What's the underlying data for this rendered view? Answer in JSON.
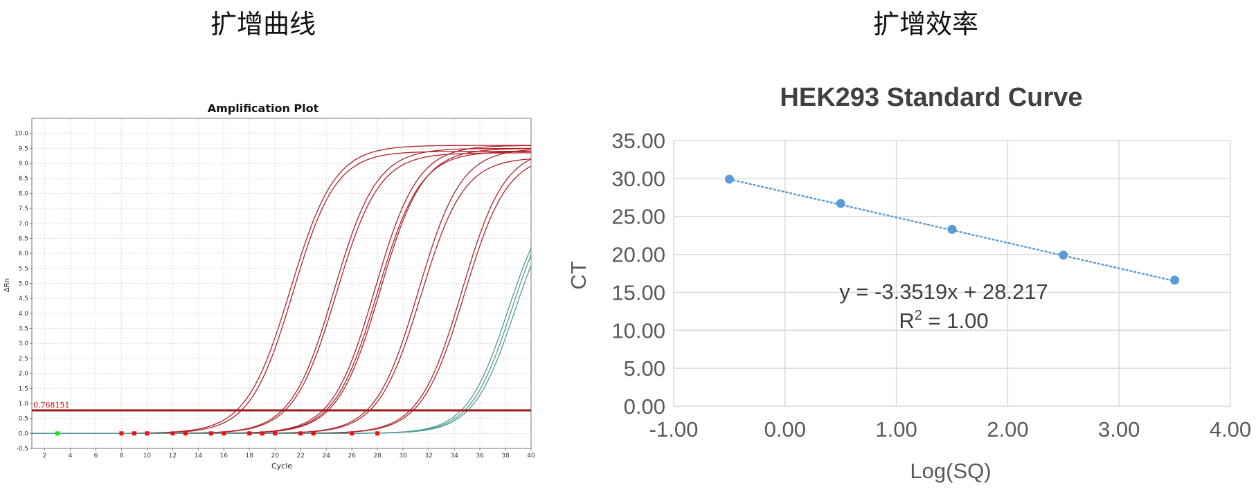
{
  "headings": {
    "left": "扩增曲线",
    "right": "扩增效率"
  },
  "chart_data": [
    {
      "type": "line",
      "title": "Amplification Plot",
      "xlabel": "Cycle",
      "ylabel": "ΔRn",
      "xlim": [
        1,
        40
      ],
      "ylim": [
        -0.5,
        10.5
      ],
      "x_ticks": [
        "2",
        "4",
        "6",
        "8",
        "10",
        "12",
        "14",
        "16",
        "18",
        "20",
        "22",
        "24",
        "26",
        "28",
        "30",
        "32",
        "34",
        "36",
        "38",
        "40"
      ],
      "y_ticks": [
        "-0.5",
        "0.0",
        "0.5",
        "1.0",
        "1.5",
        "2.0",
        "2.5",
        "3.0",
        "3.5",
        "4.0",
        "4.5",
        "5.0",
        "5.5",
        "6.0",
        "6.5",
        "7.0",
        "7.5",
        "8.0",
        "8.5",
        "9.0",
        "9.5",
        "10.0"
      ],
      "threshold": {
        "value": 0.768151,
        "label": "0.768151"
      },
      "grid": true,
      "series": [
        {
          "midpoint": 21.2,
          "slope": 0.58,
          "plateau": 9.6,
          "color": "#b0202b"
        },
        {
          "midpoint": 21.4,
          "slope": 0.6,
          "plateau": 9.4,
          "color": "#b0202b"
        },
        {
          "midpoint": 24.6,
          "slope": 0.6,
          "plateau": 9.5,
          "color": "#b0202b"
        },
        {
          "midpoint": 24.8,
          "slope": 0.6,
          "plateau": 9.35,
          "color": "#b0202b"
        },
        {
          "midpoint": 27.8,
          "slope": 0.6,
          "plateau": 9.6,
          "color": "#b0202b"
        },
        {
          "midpoint": 28.0,
          "slope": 0.6,
          "plateau": 9.4,
          "color": "#b0202b"
        },
        {
          "midpoint": 28.2,
          "slope": 0.6,
          "plateau": 9.5,
          "color": "#b0202b"
        },
        {
          "midpoint": 31.2,
          "slope": 0.6,
          "plateau": 9.5,
          "color": "#b0202b"
        },
        {
          "midpoint": 31.4,
          "slope": 0.6,
          "plateau": 9.2,
          "color": "#b0202b"
        },
        {
          "midpoint": 34.6,
          "slope": 0.6,
          "plateau": 9.5,
          "color": "#b0202b"
        },
        {
          "midpoint": 34.8,
          "slope": 0.6,
          "plateau": 9.3,
          "color": "#b0202b"
        },
        {
          "midpoint": 38.2,
          "slope": 0.62,
          "plateau": 8.2,
          "color": "#4f9a94"
        },
        {
          "midpoint": 38.5,
          "slope": 0.62,
          "plateau": 8.3,
          "color": "#4f9a94"
        },
        {
          "midpoint": 38.7,
          "slope": 0.62,
          "plateau": 8.1,
          "color": "#4f9a94"
        }
      ],
      "ct_markers_red": [
        8,
        9,
        10,
        12,
        13,
        15,
        16,
        18,
        19,
        20,
        22,
        23,
        26,
        28
      ],
      "ct_markers_green": [
        3
      ]
    },
    {
      "type": "scatter",
      "title": "HEK293 Standard Curve",
      "xlabel": "Log(SQ)",
      "ylabel": "CT",
      "xlim": [
        -1.0,
        4.0
      ],
      "ylim": [
        0.0,
        35.0
      ],
      "x_ticks": [
        "-1.00",
        "0.00",
        "1.00",
        "2.00",
        "3.00",
        "4.00"
      ],
      "y_ticks": [
        "0.00",
        "5.00",
        "10.00",
        "15.00",
        "20.00",
        "25.00",
        "30.00",
        "35.00"
      ],
      "x": [
        -0.5,
        0.5,
        1.5,
        2.5,
        3.5
      ],
      "y": [
        29.9,
        26.7,
        23.3,
        19.9,
        16.6
      ],
      "trendline": {
        "slope": -3.3519,
        "intercept": 28.217,
        "style": "dotted"
      },
      "equation_text": "y = -3.3519x + 28.217",
      "r2_prefix": "R",
      "r2_exponent": "2",
      "r2_value": " = 1.00",
      "color": "#5b9bd5",
      "grid": true
    }
  ]
}
